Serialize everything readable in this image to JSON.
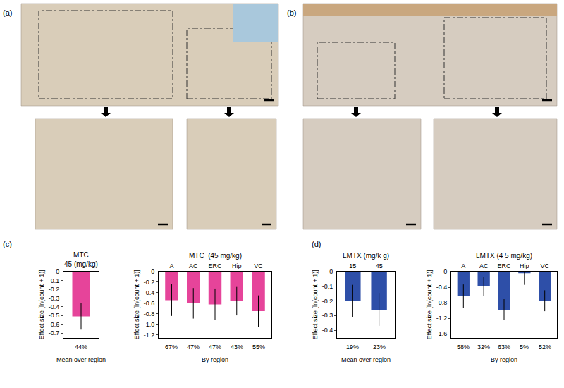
{
  "panel_labels": [
    "(a)",
    "(b)",
    "(c)",
    "(d)"
  ],
  "chart_data": [
    {
      "type": "bar",
      "title": "MTC\n45 (mg/kg)",
      "categories": [
        null
      ],
      "values": [
        -0.51
      ],
      "errors": [
        0.15
      ],
      "color": "#e6449a",
      "ylim": [
        -0.75,
        0
      ],
      "yticks": [
        0,
        -0.1,
        -0.2,
        -0.3,
        -0.4,
        -0.5,
        -0.6,
        -0.7
      ],
      "y_label": "Effect size [ln(count + 1)]",
      "bottom_labels": [
        "44%"
      ],
      "bottom_title": "Mean over region",
      "grid": false
    },
    {
      "type": "bar",
      "title": "MTC  (45 mg/kg)",
      "categories": [
        "A",
        "AC",
        "ERC",
        "Hip",
        "VC"
      ],
      "values": [
        -0.54,
        -0.6,
        -0.62,
        -0.56,
        -0.75
      ],
      "errors": [
        0.3,
        0.29,
        0.3,
        0.27,
        0.3
      ],
      "color": "#e6449a",
      "ylim": [
        -1.25,
        0
      ],
      "yticks": [
        0,
        -0.2,
        -0.4,
        -0.6,
        -0.8,
        {
          "value": -1,
          "label": "-1.0"
        },
        -1.2
      ],
      "y_label": "Effect size [ln(count + 1)]",
      "bottom_labels": [
        "67%",
        "47%",
        "47%",
        "43%",
        "55%"
      ],
      "bottom_title": "By region",
      "grid": false
    },
    {
      "type": "bar",
      "title": "LMTX (mg/k g)",
      "categories": [
        "15",
        "45"
      ],
      "values": [
        -0.2,
        -0.26
      ],
      "errors": [
        0.11,
        0.11
      ],
      "color": "#2e4fa8",
      "ylim": [
        -0.45,
        0
      ],
      "yticks": [
        0,
        -0.1,
        -0.2,
        -0.3,
        -0.4
      ],
      "y_label": "Effect size [ln(count + 1)]",
      "bottom_labels": [
        "19%",
        "23%"
      ],
      "bottom_title": "Mean over region",
      "grid": false
    },
    {
      "type": "bar",
      "title": "LMTX (4 5 mg/kg)",
      "categories": [
        "A",
        "AC",
        "ERC",
        "Hip",
        "VC"
      ],
      "values": [
        -0.63,
        -0.38,
        -0.98,
        -0.04,
        -0.75
      ],
      "errors": [
        0.3,
        0.25,
        0.27,
        0.3,
        0.27
      ],
      "color": "#2e4fa8",
      "ylim": [
        -1.7,
        0
      ],
      "yticks": [
        0,
        -0.4,
        -0.8,
        -1.2,
        -1.6
      ],
      "y_label": "Effect size [ln(count + 1)]",
      "bottom_labels": [
        "58%",
        "32%",
        "63%",
        "5%",
        "52%"
      ],
      "bottom_title": "By region",
      "grid": false
    }
  ]
}
